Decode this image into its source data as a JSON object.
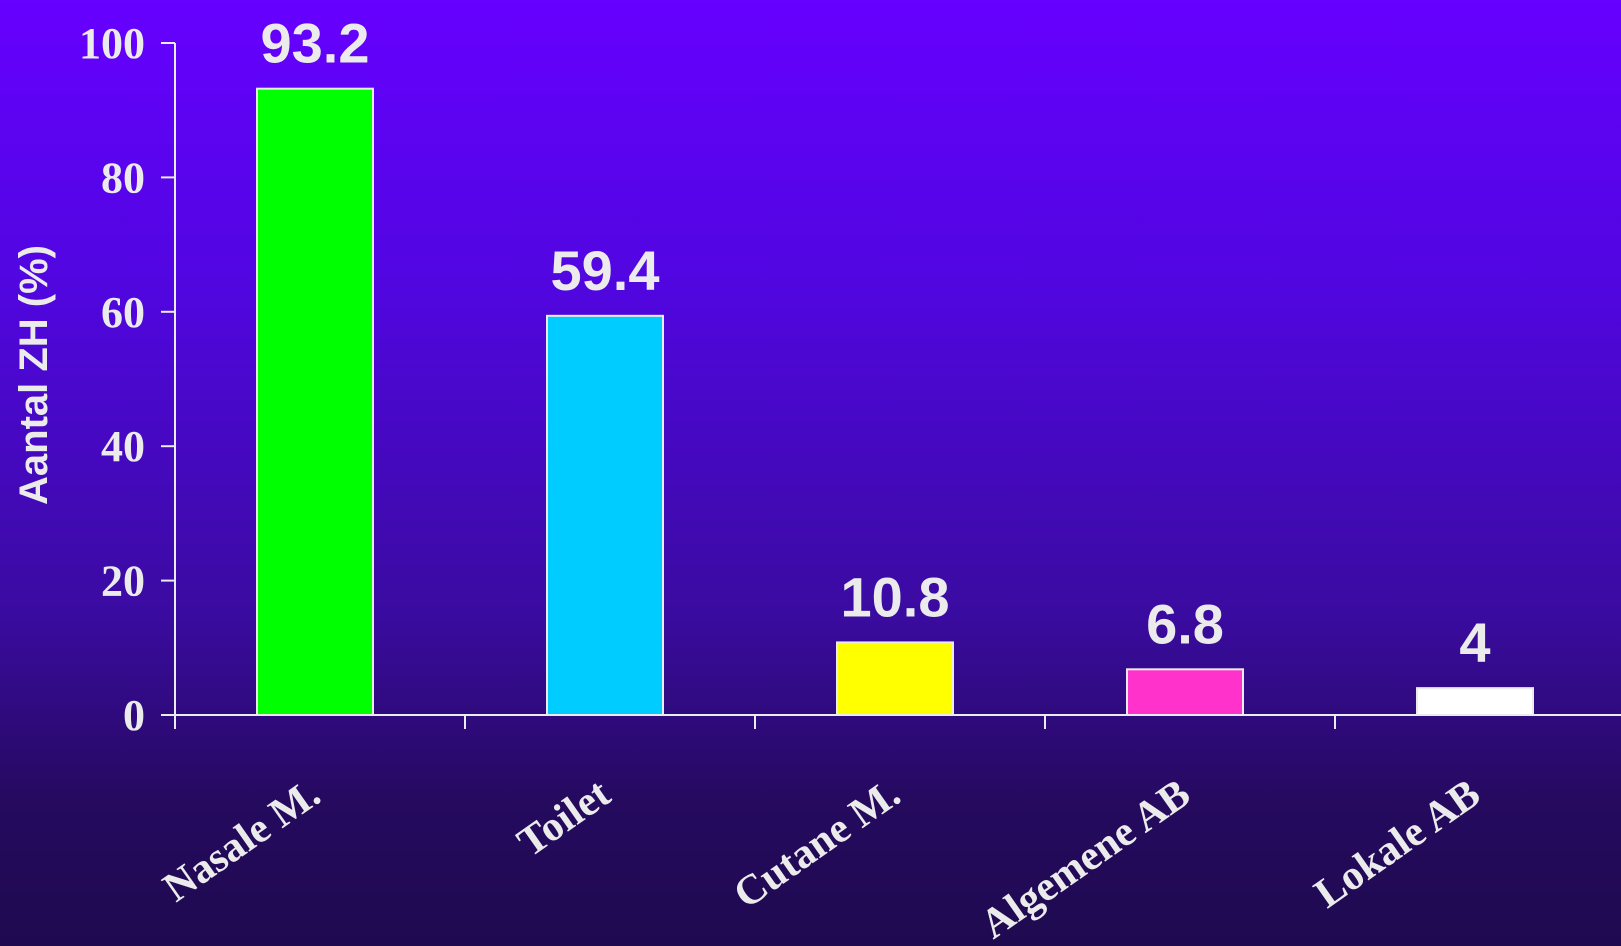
{
  "chart_data": {
    "type": "bar",
    "title": "",
    "xlabel": "",
    "ylabel": "Aantal ZH (%)",
    "ylim": [
      0,
      100
    ],
    "yticks": [
      0,
      20,
      40,
      60,
      80,
      100
    ],
    "categories": [
      "Nasale M.",
      "Toilet",
      "Cutane M.",
      "Algemene AB",
      "Lokale AB"
    ],
    "values": [
      93.2,
      59.4,
      10.8,
      6.8,
      4
    ],
    "data_labels": [
      "93.2",
      "59.4",
      "10.8",
      "6.8",
      "4"
    ],
    "bar_colors": [
      "#00ff00",
      "#00ccff",
      "#ffff00",
      "#ff33cc",
      "#ffffff"
    ],
    "grid": false,
    "legend": "none"
  },
  "colors": {
    "axis": "#ebebeb",
    "text": "#ebebeb",
    "bar_outline": "#ebebeb",
    "background_top": "#6600ff",
    "background_bottom": "#1f0a50"
  }
}
